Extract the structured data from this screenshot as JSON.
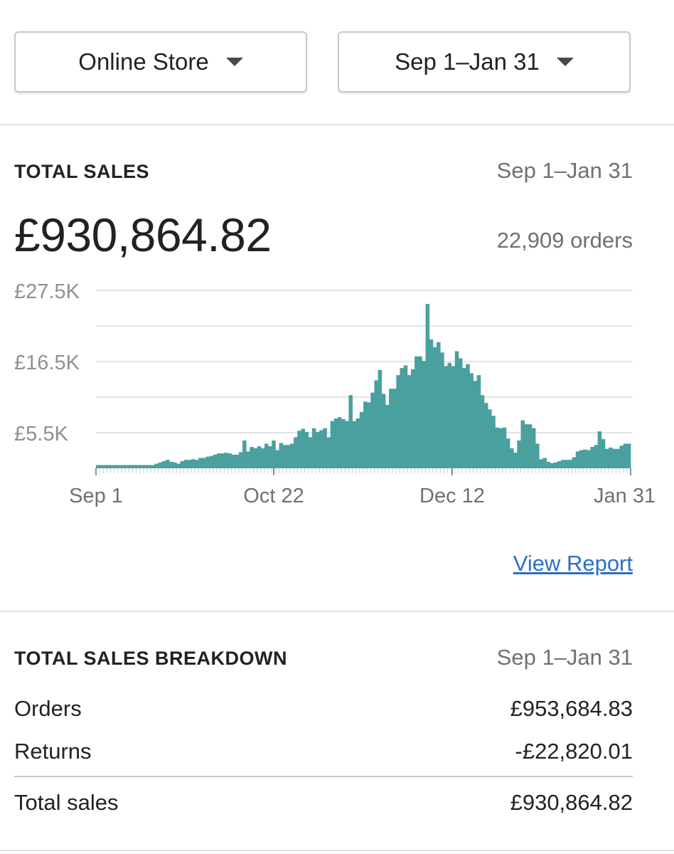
{
  "filters": {
    "channel_label": "Online Store",
    "date_label": "Sep 1–Jan 31"
  },
  "total_sales": {
    "label": "TOTAL SALES",
    "range": "Sep 1–Jan 31",
    "amount": "£930,864.82",
    "orders": "22,909 orders",
    "view_report": "View Report"
  },
  "chart_data": {
    "type": "bar",
    "x_start": "Sep 1",
    "x_end": "Jan 31",
    "x_ticks": [
      "Sep 1",
      "Oct 22",
      "Dec 12",
      "Jan 31"
    ],
    "y_ticks": [
      "£27.5K",
      "£16.5K",
      "£5.5K"
    ],
    "ylim": [
      0,
      27.5
    ],
    "unit": "£K",
    "grid": true,
    "color": "#4aa09f",
    "values": [
      0.5,
      0.5,
      0.5,
      0.5,
      0.5,
      0.5,
      0.5,
      0.5,
      0.5,
      0.5,
      0.5,
      0.5,
      0.5,
      0.5,
      0.5,
      0.5,
      0.7,
      0.9,
      1.1,
      1.3,
      1.0,
      0.9,
      0.7,
      1.1,
      1.3,
      1.3,
      1.4,
      1.3,
      1.6,
      1.6,
      1.8,
      1.9,
      2.1,
      2.3,
      2.3,
      2.4,
      2.3,
      2.1,
      2.1,
      2.5,
      4.3,
      2.6,
      3.3,
      3.1,
      3.4,
      3.1,
      3.8,
      3.4,
      4.3,
      2.8,
      3.9,
      3.6,
      3.6,
      3.8,
      4.8,
      5.8,
      6.1,
      5.6,
      4.8,
      6.2,
      5.6,
      5.9,
      6.2,
      4.8,
      7.3,
      7.7,
      7.9,
      7.6,
      7.3,
      11.3,
      7.3,
      7.7,
      8.7,
      10.3,
      10.2,
      11.7,
      13.6,
      15.2,
      11.5,
      9.8,
      12.3,
      12.3,
      14.4,
      15.5,
      15.9,
      14.4,
      15.3,
      17.3,
      17.3,
      16.6,
      25.4,
      19.9,
      18.7,
      19.5,
      17.9,
      15.8,
      16.3,
      15.8,
      18.1,
      17.0,
      15.5,
      16.1,
      14.7,
      13.5,
      14.4,
      11.3,
      10.1,
      9.1,
      8.1,
      6.3,
      6.2,
      6.3,
      4.6,
      3.1,
      2.4,
      4.3,
      7.4,
      6.8,
      6.8,
      6.2,
      3.8,
      1.4,
      1.6,
      1.0,
      0.8,
      0.9,
      1.1,
      1.3,
      1.3,
      1.3,
      1.7,
      2.6,
      2.8,
      2.9,
      2.8,
      3.3,
      3.6,
      5.7,
      4.5,
      3.0,
      3.2,
      3.0,
      3.0,
      3.5,
      3.8,
      3.8
    ]
  },
  "breakdown": {
    "label": "TOTAL SALES BREAKDOWN",
    "range": "Sep 1–Jan 31",
    "rows": [
      {
        "label": "Orders",
        "value": "£953,684.83"
      },
      {
        "label": "Returns",
        "value": "-£22,820.01"
      }
    ],
    "total": {
      "label": "Total sales",
      "value": "£930,864.82"
    }
  }
}
